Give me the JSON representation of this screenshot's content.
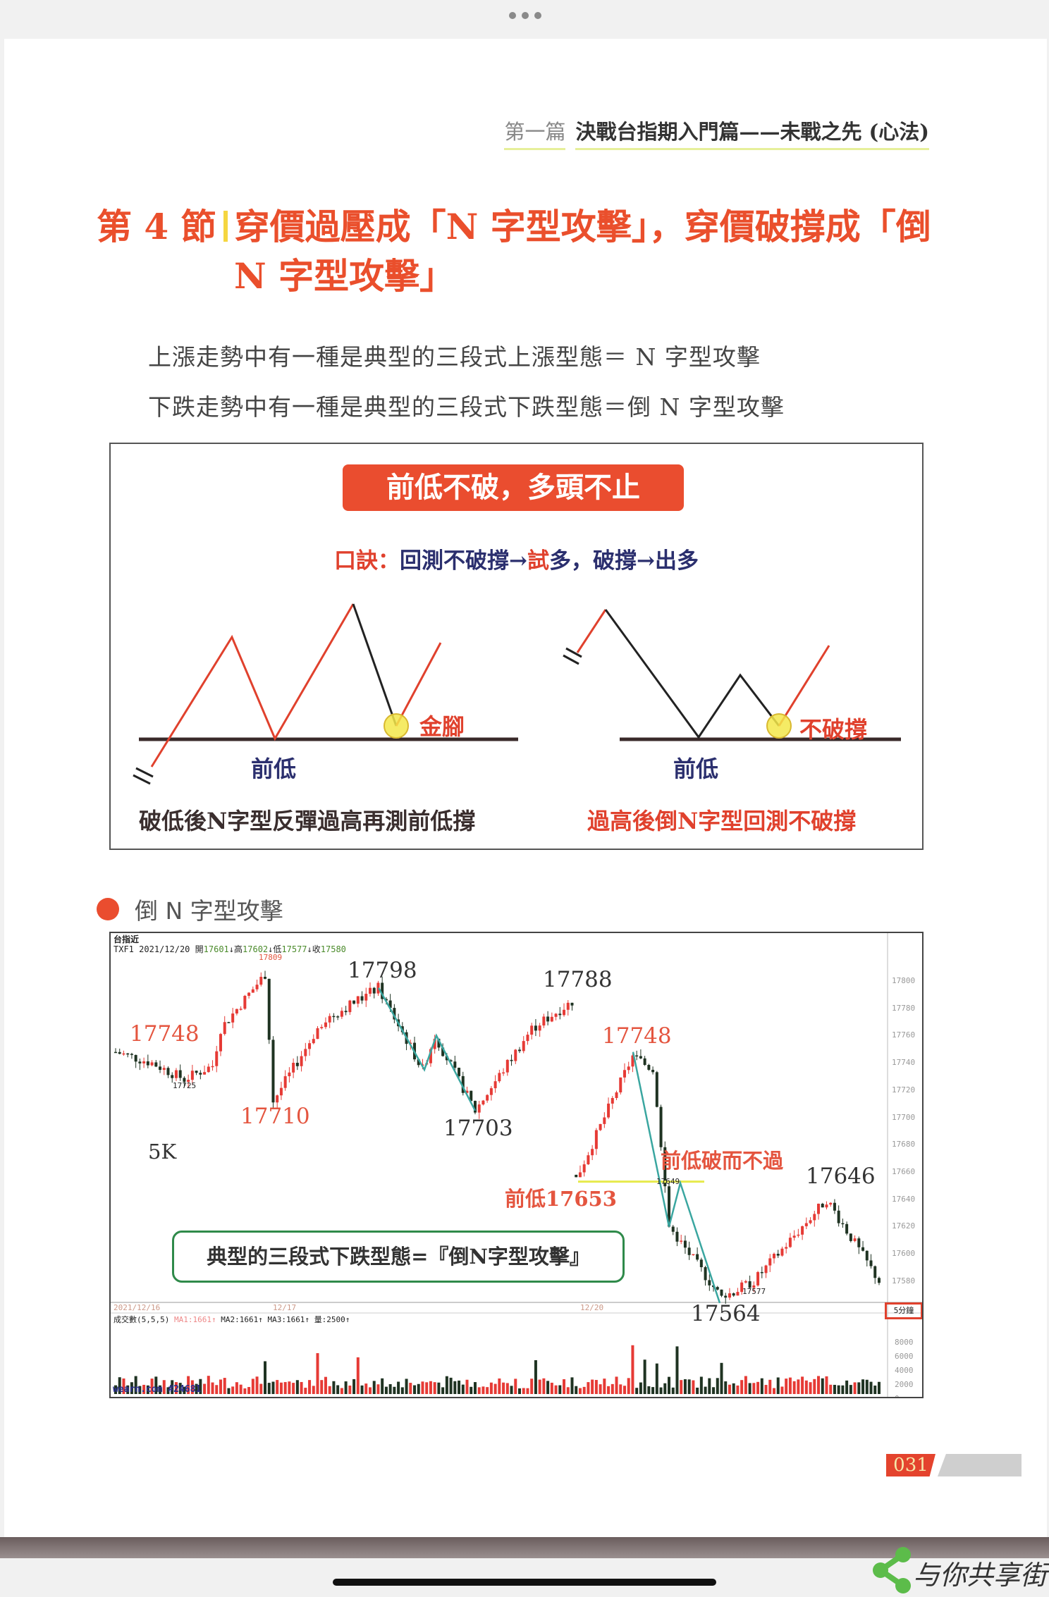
{
  "header": {
    "volume": "第一篇",
    "title": "決戰台指期入門篇——未戰之先 (心法)"
  },
  "section_title": {
    "line1_prefix": "第 4 節",
    "line1": "穿價過壓成「N 字型攻擊」，穿價破撐成「倒",
    "line2": "N 字型攻擊」"
  },
  "body": [
    "上漲走勢中有一種是典型的三段式上漲型態＝ N 字型攻擊",
    "下跌走勢中有一種是典型的三段式下跌型態＝倒 N 字型攻擊"
  ],
  "diagram": {
    "banner": "前低不破，多頭不止",
    "motto_label": "口訣：",
    "motto_a": "回測不破撐→",
    "motto_b": "試",
    "motto_c": "多，破撐→出多",
    "left_low": "前低",
    "left_mark": "金腳",
    "left_caption": "破低後N字型反彈過高再測前低撐",
    "right_low": "前低",
    "right_mark": "不破撐",
    "right_caption": "過高後倒N字型回測不破撐",
    "colors": {
      "red": "#e0412d",
      "navy": "#2b2f6e",
      "highlight": "#f3e84a"
    }
  },
  "chart_section": {
    "label": "倒 N 字型攻擊",
    "bullet_icon": "red-dot-icon"
  },
  "kchart": {
    "name": "台指近",
    "quote": {
      "symbol": "TXF1",
      "date": "2021/12/20",
      "open_label": "開",
      "open": "17601",
      "high_label": "高",
      "high": "17602",
      "low_label": "低",
      "low": "17577",
      "close_label": "收",
      "close": "17580"
    },
    "period": "5K",
    "period_button": "5分鐘",
    "price_axis": [
      "17800",
      "17780",
      "17760",
      "17740",
      "17720",
      "17700",
      "17680",
      "17660",
      "17640",
      "17620",
      "17600",
      "17580"
    ],
    "volume_axis": [
      "8000",
      "6000",
      "4000",
      "2000",
      "0"
    ],
    "dates": [
      "2021/12/16",
      "12/17",
      "12/20"
    ],
    "volume_header": "成交數(5,5,5)",
    "volume_ma": [
      "MA1:1661↑",
      "MA2:1661↑",
      "MA3:1661↑",
      "量:2500↑"
    ],
    "source": "wearn.com #24681",
    "small_labels": {
      "high1": "17809",
      "low1": "17725",
      "low2": "17649",
      "low3": "17577"
    },
    "annotations": {
      "a17748": "17748",
      "a17710": "17710",
      "a17798": "17798",
      "a17703": "17703",
      "a17788": "17788",
      "a17748b": "17748",
      "prev_low_fail": "前低破而不過",
      "prev_low": "前低17653",
      "a17646": "17646",
      "a17564": "17564"
    },
    "note": "典型的三段式下跌型態=『倒N字型攻擊』",
    "colors": {
      "up": "#e63a35",
      "down": "#1f3322",
      "trend": "#3aa6a0",
      "support": "#e7ea4c",
      "annotation": "#e4553f"
    }
  },
  "page_number": "031",
  "watermark": "与你共享街"
}
